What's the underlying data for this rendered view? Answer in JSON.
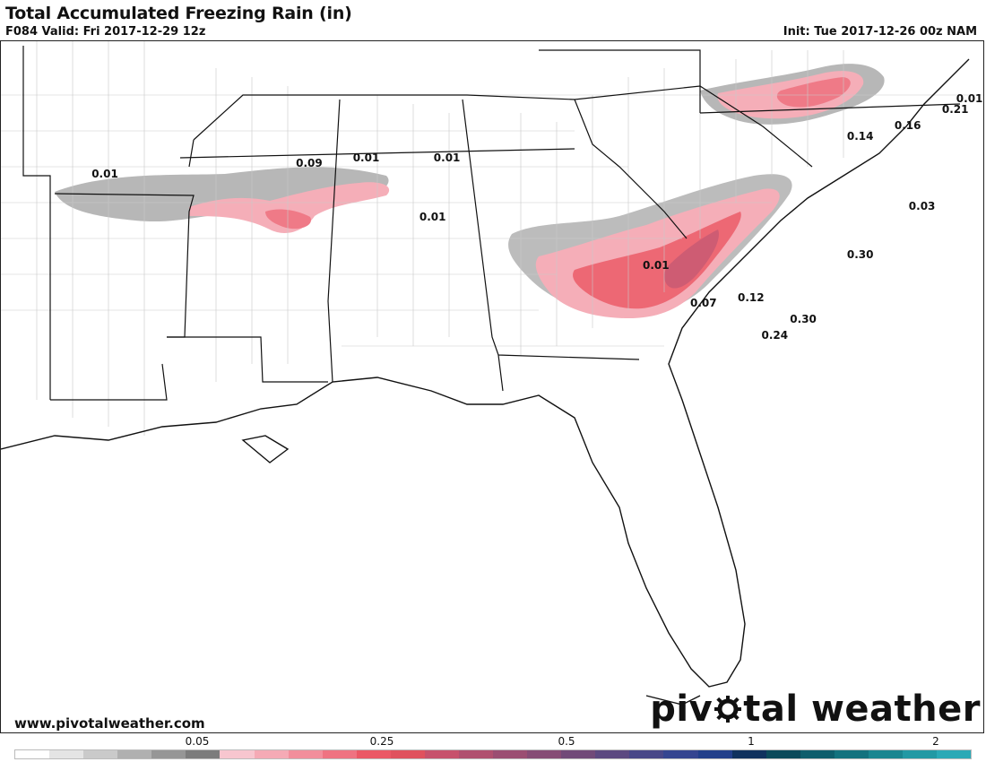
{
  "header": {
    "title": "Total Accumulated Freezing Rain (in)",
    "valid": "F084 Valid: Fri 2017-12-29 12z",
    "init": "Init: Tue 2017-12-26 00z NAM"
  },
  "footer": {
    "url": "www.pivotalweather.com",
    "brand_left": "piv",
    "brand_right": "tal weather"
  },
  "colorbar": {
    "tick_labels": [
      "0.05",
      "0.25",
      "0.5",
      "1",
      "2"
    ],
    "colors": [
      "#ffffff",
      "#e4e4e4",
      "#cacaca",
      "#b0b0b0",
      "#969696",
      "#7c7c7c",
      "#f7c6cf",
      "#f5aab5",
      "#f28e9b",
      "#ef7381",
      "#eb5865",
      "#e0525e",
      "#c7526c",
      "#b0506f",
      "#9b4e72",
      "#864c75",
      "#714a78",
      "#5c4980",
      "#484788",
      "#354590",
      "#223f8a",
      "#10325e",
      "#0b4a5a",
      "#0e5e6c",
      "#13727e",
      "#1a8690",
      "#2299a4",
      "#2aa9b6"
    ]
  },
  "map_labels": [
    {
      "text": "0.01",
      "lon": -94.6,
      "lat": 34.9
    },
    {
      "text": "0.09",
      "lon": -90.3,
      "lat": 35.1
    },
    {
      "text": "0.01",
      "lon": -89.1,
      "lat": 35.2
    },
    {
      "text": "0.01",
      "lon": -87.4,
      "lat": 35.2
    },
    {
      "text": "0.01",
      "lon": -87.7,
      "lat": 34.1
    },
    {
      "text": "0.01",
      "lon": -83.0,
      "lat": 33.2
    },
    {
      "text": "0.07",
      "lon": -82.0,
      "lat": 32.5
    },
    {
      "text": "0.12",
      "lon": -81.0,
      "lat": 32.6
    },
    {
      "text": "0.24",
      "lon": -80.5,
      "lat": 31.9
    },
    {
      "text": "0.30",
      "lon": -79.9,
      "lat": 32.2
    },
    {
      "text": "0.30",
      "lon": -78.7,
      "lat": 33.4
    },
    {
      "text": "0.03",
      "lon": -77.4,
      "lat": 34.3
    },
    {
      "text": "0.14",
      "lon": -78.7,
      "lat": 35.6
    },
    {
      "text": "0.16",
      "lon": -77.7,
      "lat": 35.8
    },
    {
      "text": "0.21",
      "lon": -76.7,
      "lat": 36.1
    },
    {
      "text": "0.01",
      "lon": -76.4,
      "lat": 36.3
    }
  ]
}
